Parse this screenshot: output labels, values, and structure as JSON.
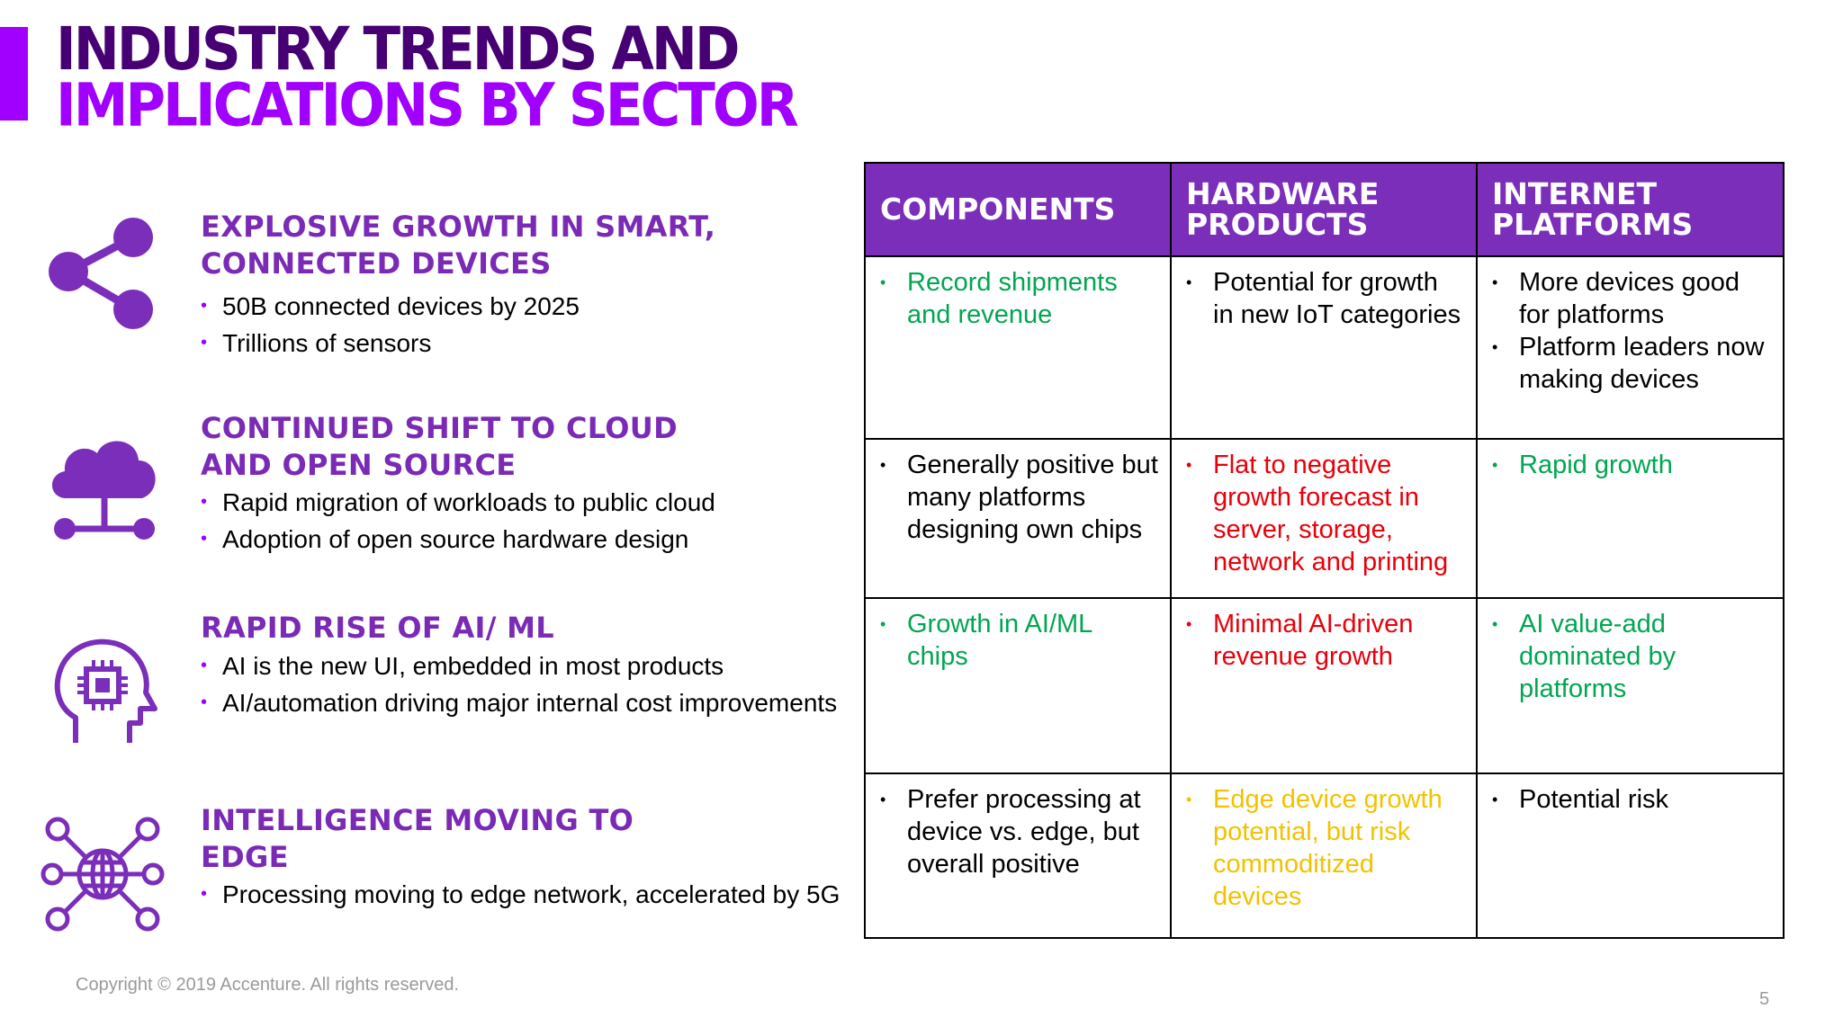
{
  "title": {
    "line1": "INDUSTRY TRENDS AND",
    "line2": "IMPLICATIONS BY SECTOR"
  },
  "colors": {
    "accent": "#a100ff",
    "dark_purple": "#460073",
    "header_purple": "#7b2eb9",
    "heading_purple": "#7a2ab5",
    "green": "#00a651",
    "red": "#e8000a",
    "yellow": "#f2c200",
    "black": "#000000"
  },
  "trends": [
    {
      "icon": "share-network-icon",
      "heading_line1": "EXPLOSIVE GROWTH IN SMART,",
      "heading_line2": "CONNECTED DEVICES",
      "bullets": [
        "50B connected devices by 2025",
        "Trillions of sensors"
      ]
    },
    {
      "icon": "cloud-network-icon",
      "heading_line1": "CONTINUED SHIFT TO CLOUD",
      "heading_line2": "AND OPEN SOURCE",
      "bullets": [
        "Rapid migration of workloads to public cloud",
        "Adoption of open source hardware design"
      ]
    },
    {
      "icon": "ai-head-chip-icon",
      "heading_line1": "RAPID RISE OF AI/ ML",
      "heading_line2": "",
      "bullets": [
        "AI is the new UI, embedded in most products",
        "AI/automation driving major internal cost improvements"
      ]
    },
    {
      "icon": "edge-globe-icon",
      "heading_line1": "INTELLIGENCE MOVING TO",
      "heading_line2": "EDGE",
      "bullets": [
        "Processing moving to edge network, accelerated by 5G"
      ]
    }
  ],
  "table": {
    "headers": [
      {
        "line1": "COMPONENTS",
        "line2": ""
      },
      {
        "line1": "HARDWARE",
        "line2": "PRODUCTS"
      },
      {
        "line1": "INTERNET",
        "line2": "PLATFORMS"
      }
    ],
    "rows": [
      [
        {
          "color": "#00a651",
          "items": [
            "Record shipments and revenue"
          ]
        },
        {
          "color": "#000000",
          "items": [
            "Potential for growth in new IoT categories"
          ]
        },
        {
          "color": "#000000",
          "items": [
            "More devices good for platforms",
            "Platform leaders now making devices"
          ]
        }
      ],
      [
        {
          "color": "#000000",
          "items": [
            "Generally positive but many platforms designing own chips"
          ]
        },
        {
          "color": "#e8000a",
          "items": [
            "Flat to negative growth forecast in server, storage, network and printing"
          ]
        },
        {
          "color": "#00a651",
          "items": [
            "Rapid growth"
          ]
        }
      ],
      [
        {
          "color": "#00a651",
          "items": [
            "Growth in AI/ML chips"
          ]
        },
        {
          "color": "#e8000a",
          "items": [
            "Minimal AI-driven revenue growth"
          ]
        },
        {
          "color": "#00a651",
          "items": [
            "AI value-add dominated by platforms"
          ]
        }
      ],
      [
        {
          "color": "#000000",
          "items": [
            "Prefer processing at device vs. edge, but overall positive"
          ]
        },
        {
          "color": "#f2c200",
          "items": [
            "Edge device growth potential, but risk commoditized devices"
          ]
        },
        {
          "color": "#000000",
          "items": [
            "Potential risk"
          ]
        }
      ]
    ]
  },
  "footer": {
    "copyright": "Copyright © 2019 Accenture. All rights reserved.",
    "page_number": "5"
  }
}
